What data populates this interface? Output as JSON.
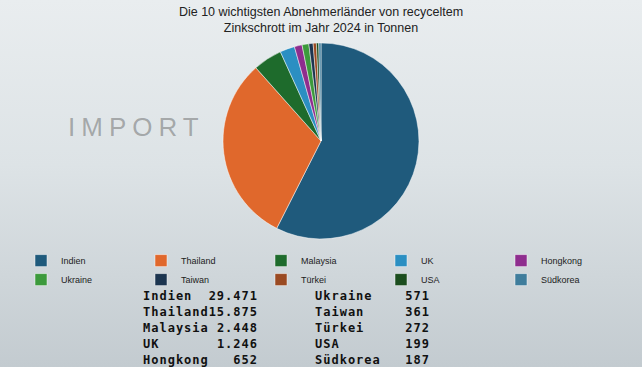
{
  "chart_data": {
    "type": "pie",
    "title": "Die 10 wichtigsten Abnehmerländer von recyceltem Zinkschrott im Jahr 2024 in Tonnen",
    "categories": [
      "Indien",
      "Thailand",
      "Malaysia",
      "UK",
      "Hongkong",
      "Ukraine",
      "Taiwan",
      "Türkei",
      "USA",
      "Südkorea"
    ],
    "values": [
      29471,
      15875,
      2448,
      1246,
      652,
      571,
      361,
      272,
      199,
      187
    ],
    "value_labels": [
      "29.471",
      "15.875",
      "2.448",
      "1.246",
      "652",
      "571",
      "361",
      "272",
      "199",
      "187"
    ],
    "colors": [
      "#1f5a7c",
      "#e0682c",
      "#1e6b2c",
      "#2b8fc2",
      "#8e2d8e",
      "#3c9a3c",
      "#1c3550",
      "#9a4a22",
      "#1b4d1e",
      "#3f7d9c"
    ],
    "legend": "bottom",
    "data_labels": false,
    "annotations": [
      "IMPORT"
    ]
  }
}
